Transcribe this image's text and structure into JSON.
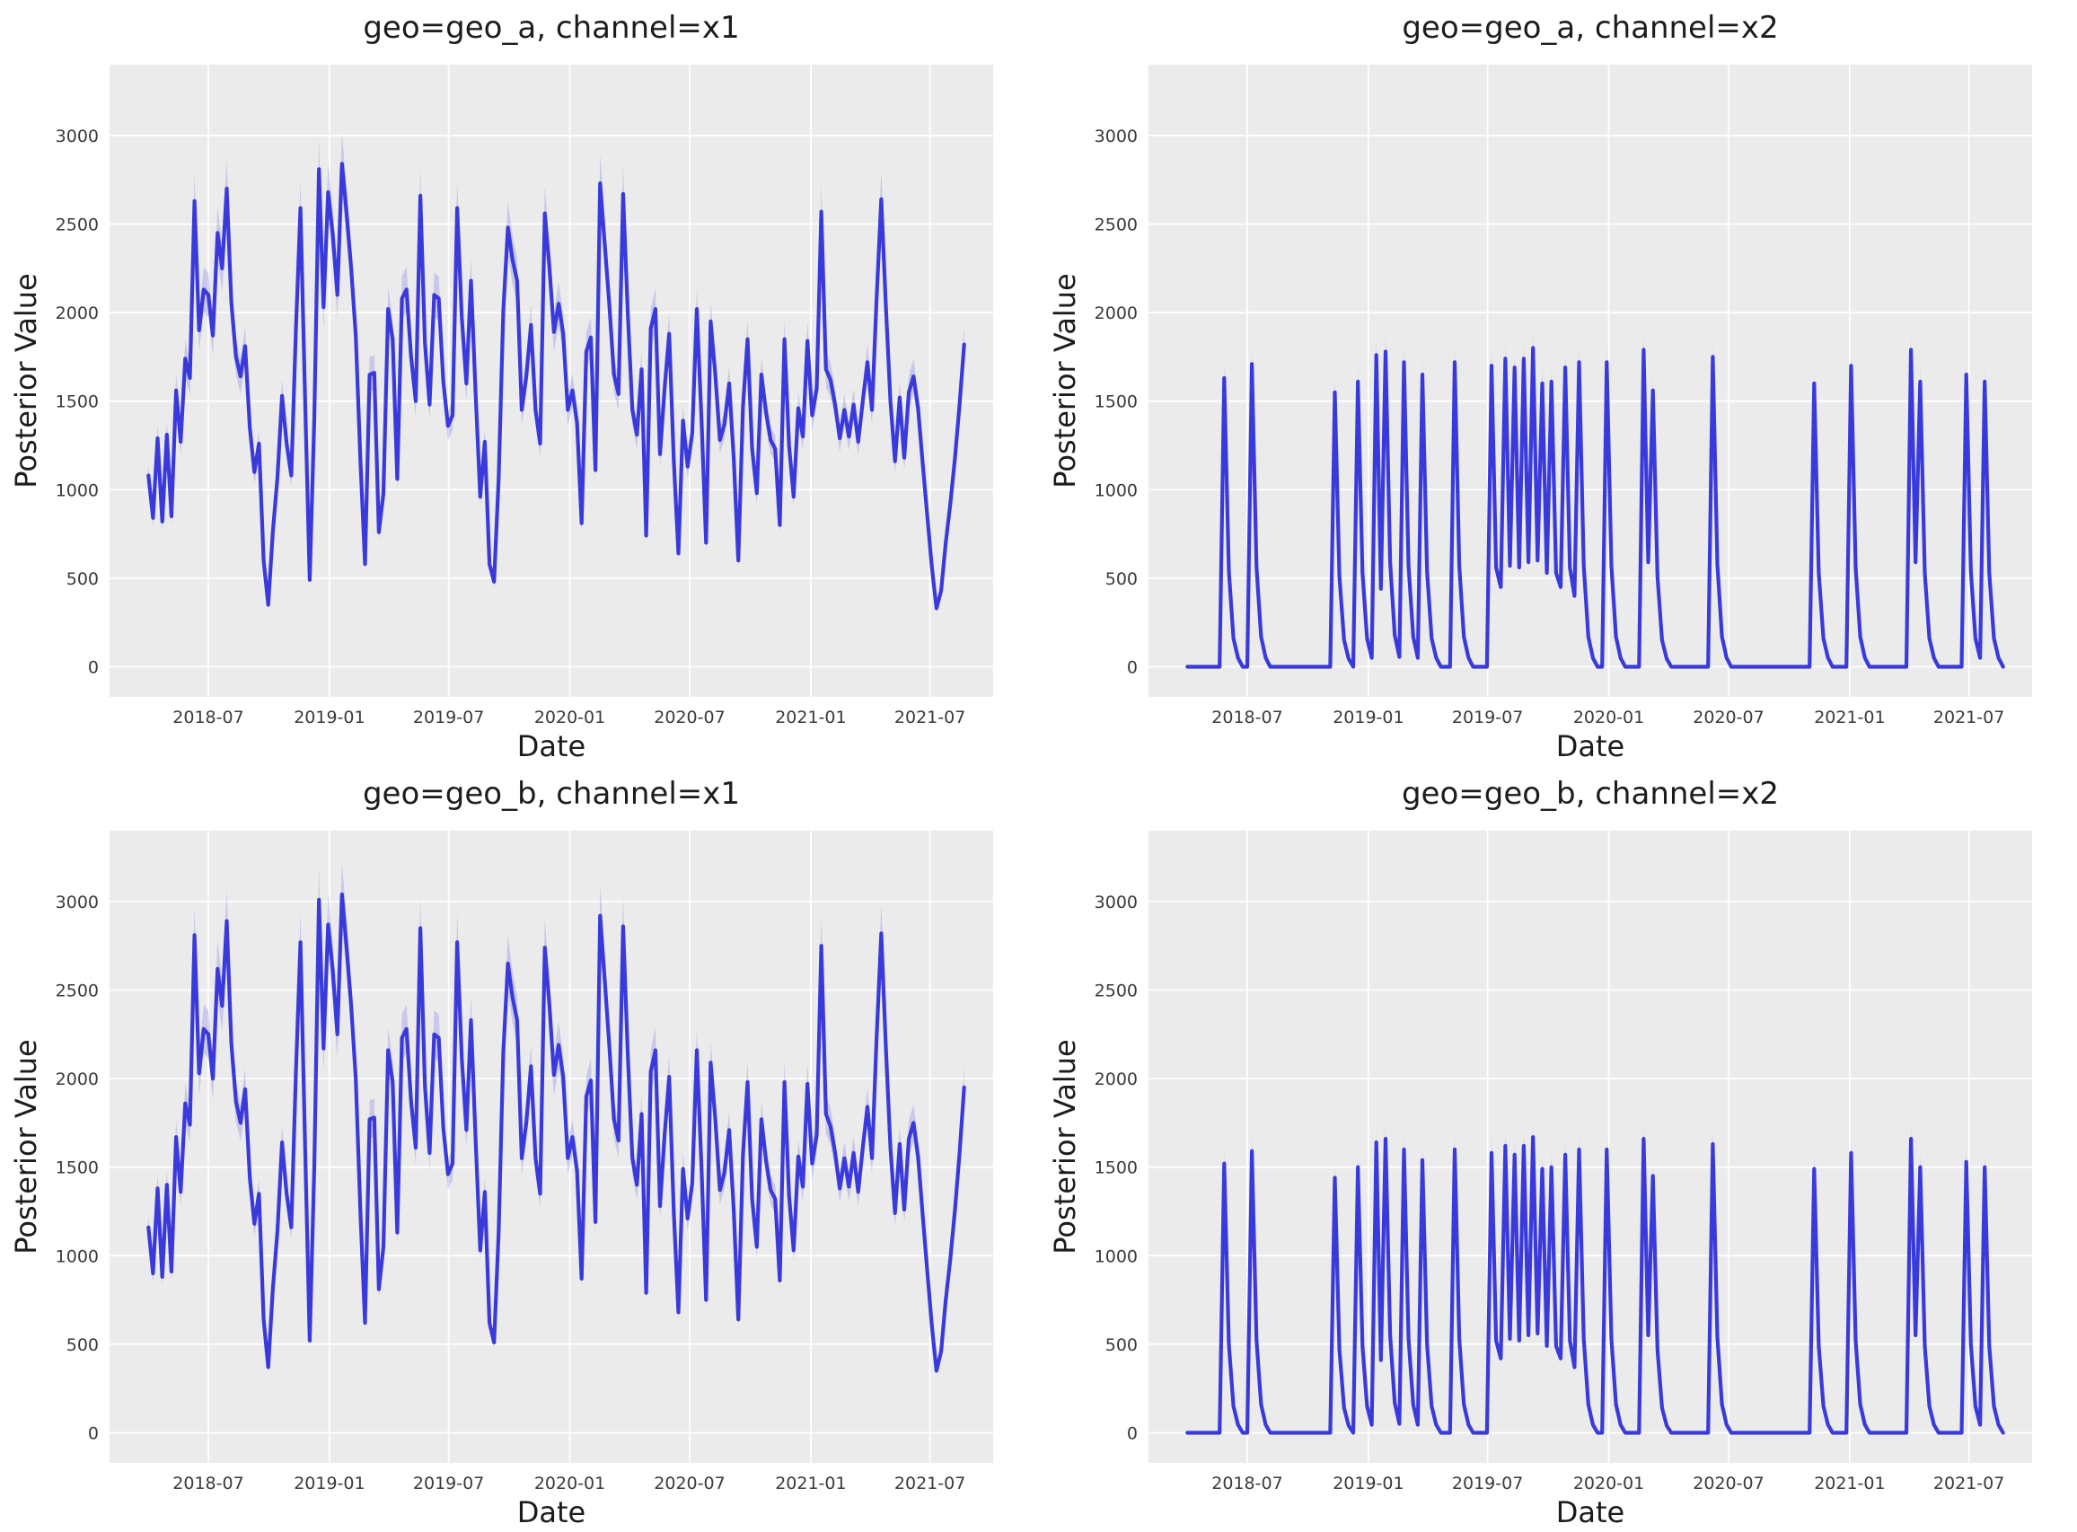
{
  "figure": {
    "line_color": "#3a3adc",
    "band_color": "#3a3adc",
    "band_opacity": 0.2,
    "plot_background": "#ebebeb",
    "grid_color": "#ffffff"
  },
  "chart_data": [
    {
      "type": "line",
      "title": "geo=geo_a, channel=x1",
      "xlabel": "Date",
      "ylabel": "Posterior Value",
      "legend": "none",
      "grid": "on",
      "ylim": [
        -170,
        3400
      ],
      "xlim": [
        "2018-02-01",
        "2021-10-05"
      ],
      "yticks": [
        0,
        500,
        1000,
        1500,
        2000,
        2500,
        3000
      ],
      "xticks": [
        {
          "label": "2018-07",
          "date": "2018-07-01"
        },
        {
          "label": "2019-01",
          "date": "2019-01-01"
        },
        {
          "label": "2019-07",
          "date": "2019-07-01"
        },
        {
          "label": "2020-01",
          "date": "2020-01-01"
        },
        {
          "label": "2020-07",
          "date": "2020-07-01"
        },
        {
          "label": "2021-01",
          "date": "2021-01-01"
        },
        {
          "label": "2021-07",
          "date": "2021-07-01"
        }
      ],
      "x_start": "2018-04-01",
      "x_step_days": 7,
      "ci_frac": 0.06,
      "values": [
        1080,
        840,
        1290,
        820,
        1310,
        850,
        1560,
        1270,
        1740,
        1630,
        2630,
        1900,
        2130,
        2100,
        1870,
        2450,
        2250,
        2700,
        2060,
        1750,
        1640,
        1810,
        1350,
        1100,
        1260,
        600,
        350,
        760,
        1070,
        1530,
        1260,
        1080,
        1900,
        2590,
        1500,
        490,
        1400,
        2810,
        2030,
        2680,
        2440,
        2100,
        2840,
        2560,
        2250,
        1870,
        1160,
        580,
        1650,
        1660,
        760,
        980,
        2020,
        1850,
        1060,
        2080,
        2130,
        1750,
        1500,
        2660,
        1830,
        1480,
        2100,
        2080,
        1610,
        1360,
        1420,
        2590,
        1970,
        1600,
        2180,
        1540,
        960,
        1270,
        580,
        480,
        1060,
        2010,
        2480,
        2300,
        2180,
        1450,
        1640,
        1930,
        1450,
        1260,
        2560,
        2260,
        1890,
        2050,
        1880,
        1450,
        1560,
        1380,
        810,
        1780,
        1860,
        1110,
        2730,
        2390,
        2050,
        1650,
        1540,
        2670,
        2000,
        1450,
        1310,
        1680,
        740,
        1910,
        2020,
        1200,
        1570,
        1880,
        1160,
        640,
        1390,
        1130,
        1320,
        2020,
        1400,
        700,
        1950,
        1650,
        1280,
        1370,
        1600,
        1180,
        600,
        1470,
        1850,
        1230,
        980,
        1650,
        1440,
        1280,
        1230,
        800,
        1850,
        1250,
        960,
        1460,
        1300,
        1840,
        1420,
        1570,
        2570,
        1680,
        1620,
        1480,
        1290,
        1450,
        1300,
        1480,
        1270,
        1500,
        1720,
        1450,
        2080,
        2640,
        2040,
        1500,
        1160,
        1520,
        1180,
        1550,
        1640,
        1460,
        1150,
        850,
        560,
        330,
        430,
        700,
        920,
        1180,
        1480,
        1820
      ]
    },
    {
      "type": "line",
      "title": "geo=geo_a, channel=x2",
      "xlabel": "Date",
      "ylabel": "Posterior Value",
      "legend": "none",
      "grid": "on",
      "ylim": [
        -170,
        3400
      ],
      "xlim": [
        "2018-02-01",
        "2021-10-05"
      ],
      "yticks": [
        0,
        500,
        1000,
        1500,
        2000,
        2500,
        3000
      ],
      "xticks": [
        {
          "label": "2018-07",
          "date": "2018-07-01"
        },
        {
          "label": "2019-01",
          "date": "2019-01-01"
        },
        {
          "label": "2019-07",
          "date": "2019-07-01"
        },
        {
          "label": "2020-01",
          "date": "2020-01-01"
        },
        {
          "label": "2020-07",
          "date": "2020-07-01"
        },
        {
          "label": "2021-01",
          "date": "2021-01-01"
        },
        {
          "label": "2021-07",
          "date": "2021-07-01"
        }
      ],
      "x_start": "2018-04-01",
      "x_step_days": 7,
      "ci_frac": 0.05,
      "values": [
        0,
        0,
        0,
        0,
        0,
        0,
        0,
        0,
        1630,
        540,
        160,
        50,
        0,
        0,
        1710,
        560,
        170,
        50,
        0,
        0,
        0,
        0,
        0,
        0,
        0,
        0,
        0,
        0,
        0,
        0,
        0,
        0,
        1550,
        510,
        150,
        45,
        0,
        1610,
        530,
        160,
        50,
        1760,
        440,
        1780,
        590,
        180,
        55,
        1720,
        570,
        170,
        50,
        1650,
        540,
        160,
        50,
        0,
        0,
        0,
        1720,
        570,
        170,
        50,
        0,
        0,
        0,
        0,
        1700,
        560,
        450,
        1740,
        570,
        1690,
        560,
        1740,
        590,
        1800,
        600,
        1600,
        530,
        1610,
        530,
        450,
        1690,
        560,
        400,
        1720,
        570,
        170,
        50,
        0,
        0,
        1720,
        570,
        170,
        50,
        0,
        0,
        0,
        0,
        1790,
        590,
        1560,
        510,
        150,
        45,
        0,
        0,
        0,
        0,
        0,
        0,
        0,
        0,
        0,
        1750,
        580,
        170,
        50,
        0,
        0,
        0,
        0,
        0,
        0,
        0,
        0,
        0,
        0,
        0,
        0,
        0,
        0,
        0,
        0,
        0,
        0,
        1600,
        530,
        160,
        50,
        0,
        0,
        0,
        0,
        1700,
        560,
        170,
        50,
        0,
        0,
        0,
        0,
        0,
        0,
        0,
        0,
        0,
        1790,
        590,
        1610,
        530,
        160,
        50,
        0,
        0,
        0,
        0,
        0,
        0,
        1650,
        540,
        160,
        50,
        1610,
        530,
        160,
        50,
        0
      ]
    },
    {
      "type": "line",
      "title": "geo=geo_b, channel=x1",
      "xlabel": "Date",
      "ylabel": "Posterior Value",
      "legend": "none",
      "grid": "on",
      "ylim": [
        -170,
        3400
      ],
      "xlim": [
        "2018-02-01",
        "2021-10-05"
      ],
      "yticks": [
        0,
        500,
        1000,
        1500,
        2000,
        2500,
        3000
      ],
      "xticks": [
        {
          "label": "2018-07",
          "date": "2018-07-01"
        },
        {
          "label": "2019-01",
          "date": "2019-01-01"
        },
        {
          "label": "2019-07",
          "date": "2019-07-01"
        },
        {
          "label": "2020-01",
          "date": "2020-01-01"
        },
        {
          "label": "2020-07",
          "date": "2020-07-01"
        },
        {
          "label": "2021-01",
          "date": "2021-01-01"
        },
        {
          "label": "2021-07",
          "date": "2021-07-01"
        }
      ],
      "x_start": "2018-04-01",
      "x_step_days": 7,
      "ci_frac": 0.06,
      "values": [
        1160,
        900,
        1380,
        880,
        1400,
        910,
        1670,
        1360,
        1860,
        1740,
        2810,
        2030,
        2280,
        2250,
        2000,
        2620,
        2410,
        2890,
        2200,
        1870,
        1750,
        1940,
        1440,
        1180,
        1350,
        640,
        370,
        810,
        1140,
        1640,
        1350,
        1160,
        2030,
        2770,
        1610,
        520,
        1500,
        3010,
        2170,
        2870,
        2610,
        2250,
        3040,
        2740,
        2410,
        2000,
        1240,
        620,
        1770,
        1780,
        810,
        1050,
        2160,
        1980,
        1130,
        2230,
        2280,
        1870,
        1610,
        2850,
        1960,
        1580,
        2250,
        2230,
        1720,
        1460,
        1520,
        2770,
        2110,
        1710,
        2330,
        1650,
        1030,
        1360,
        620,
        510,
        1130,
        2150,
        2650,
        2460,
        2330,
        1550,
        1750,
        2070,
        1550,
        1350,
        2740,
        2420,
        2020,
        2190,
        2010,
        1550,
        1670,
        1480,
        870,
        1900,
        1990,
        1190,
        2920,
        2560,
        2190,
        1770,
        1650,
        2860,
        2140,
        1550,
        1400,
        1800,
        790,
        2040,
        2160,
        1280,
        1680,
        2010,
        1240,
        680,
        1490,
        1210,
        1410,
        2160,
        1500,
        750,
        2090,
        1770,
        1370,
        1470,
        1710,
        1260,
        640,
        1570,
        1980,
        1320,
        1050,
        1770,
        1540,
        1370,
        1320,
        860,
        1980,
        1340,
        1030,
        1560,
        1390,
        1970,
        1520,
        1680,
        2750,
        1800,
        1730,
        1580,
        1380,
        1550,
        1390,
        1580,
        1360,
        1610,
        1840,
        1550,
        2230,
        2820,
        2180,
        1610,
        1240,
        1630,
        1260,
        1660,
        1750,
        1560,
        1230,
        910,
        600,
        350,
        460,
        750,
        980,
        1260,
        1580,
        1950
      ]
    },
    {
      "type": "line",
      "title": "geo=geo_b, channel=x2",
      "xlabel": "Date",
      "ylabel": "Posterior Value",
      "legend": "none",
      "grid": "on",
      "ylim": [
        -170,
        3400
      ],
      "xlim": [
        "2018-02-01",
        "2021-10-05"
      ],
      "yticks": [
        0,
        500,
        1000,
        1500,
        2000,
        2500,
        3000
      ],
      "xticks": [
        {
          "label": "2018-07",
          "date": "2018-07-01"
        },
        {
          "label": "2019-01",
          "date": "2019-01-01"
        },
        {
          "label": "2019-07",
          "date": "2019-07-01"
        },
        {
          "label": "2020-01",
          "date": "2020-01-01"
        },
        {
          "label": "2020-07",
          "date": "2020-07-01"
        },
        {
          "label": "2021-01",
          "date": "2021-01-01"
        },
        {
          "label": "2021-07",
          "date": "2021-07-01"
        }
      ],
      "x_start": "2018-04-01",
      "x_step_days": 7,
      "ci_frac": 0.05,
      "values": [
        0,
        0,
        0,
        0,
        0,
        0,
        0,
        0,
        1520,
        500,
        150,
        45,
        0,
        0,
        1590,
        520,
        160,
        45,
        0,
        0,
        0,
        0,
        0,
        0,
        0,
        0,
        0,
        0,
        0,
        0,
        0,
        0,
        1440,
        470,
        140,
        40,
        0,
        1500,
        490,
        150,
        45,
        1640,
        410,
        1660,
        550,
        170,
        50,
        1600,
        530,
        160,
        45,
        1540,
        500,
        150,
        45,
        0,
        0,
        0,
        1600,
        530,
        160,
        45,
        0,
        0,
        0,
        0,
        1580,
        520,
        420,
        1620,
        530,
        1570,
        520,
        1620,
        550,
        1670,
        560,
        1490,
        490,
        1500,
        490,
        420,
        1570,
        520,
        370,
        1600,
        530,
        160,
        45,
        0,
        0,
        1600,
        530,
        160,
        45,
        0,
        0,
        0,
        0,
        1660,
        550,
        1450,
        470,
        140,
        40,
        0,
        0,
        0,
        0,
        0,
        0,
        0,
        0,
        0,
        1630,
        540,
        160,
        45,
        0,
        0,
        0,
        0,
        0,
        0,
        0,
        0,
        0,
        0,
        0,
        0,
        0,
        0,
        0,
        0,
        0,
        0,
        1490,
        490,
        150,
        45,
        0,
        0,
        0,
        0,
        1580,
        520,
        160,
        45,
        0,
        0,
        0,
        0,
        0,
        0,
        0,
        0,
        0,
        1660,
        550,
        1500,
        490,
        150,
        45,
        0,
        0,
        0,
        0,
        0,
        0,
        1530,
        500,
        150,
        45,
        1500,
        490,
        150,
        45,
        0
      ]
    }
  ]
}
